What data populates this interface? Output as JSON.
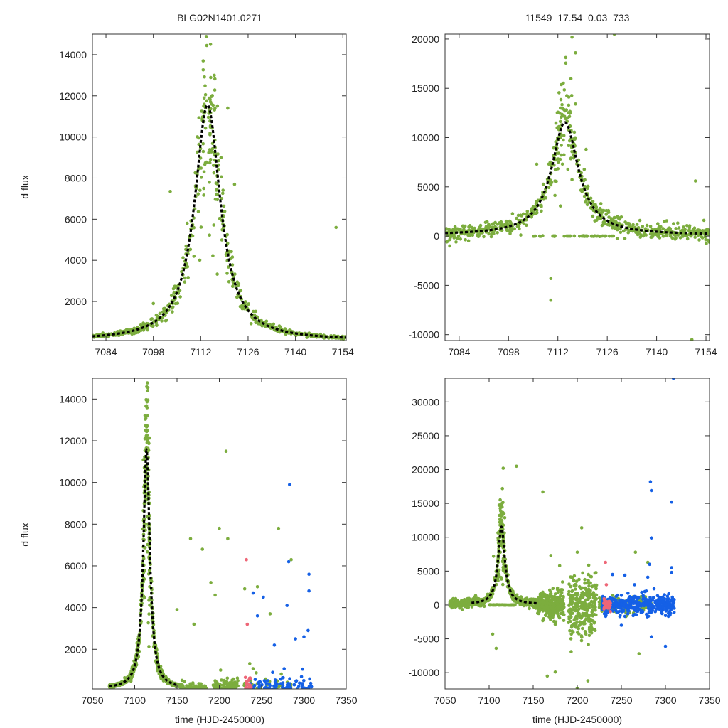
{
  "colors": {
    "green": "#7cad3e",
    "blue": "#1560e6",
    "pink": "#ee6677",
    "model": "#000000",
    "axis": "#333333"
  },
  "chart_data": [
    {
      "id": "tl",
      "type": "scatter",
      "title": "BLG02N1401.0271",
      "xlabel": "",
      "ylabel": "d flux",
      "xlim": [
        7080,
        7155
      ],
      "ylim": [
        100,
        15000
      ],
      "xticks": [
        7084,
        7098,
        7112,
        7126,
        7140,
        7154
      ],
      "yticks": [
        2000,
        4000,
        6000,
        8000,
        10000,
        12000,
        14000
      ],
      "model": {
        "t0": 7114,
        "peak": 11550,
        "tE": 4.6,
        "base": 100
      },
      "seed": 11,
      "series": [
        {
          "name": "green",
          "color": "#7cad3e",
          "segments": [
            [
              7080,
              7155,
              620,
              12,
              "model"
            ],
            [
              7111,
              7117,
              60,
              2500,
              "model"
            ]
          ],
          "outliers": [
            [
              7103,
              7350
            ],
            [
              7108,
              5800
            ],
            [
              7120,
              11400
            ],
            [
              7152,
              5600
            ],
            [
              7098,
              1900
            ],
            [
              7118,
              9000
            ],
            [
              7122,
              7700
            ],
            [
              7116,
              13000
            ],
            [
              7110,
              4200
            ]
          ]
        }
      ]
    },
    {
      "id": "tr",
      "title": "11549  17.54  0.03  733",
      "type": "scatter",
      "xlabel": "",
      "ylabel": "",
      "xlim": [
        7080,
        7155
      ],
      "ylim": [
        -10600,
        20500
      ],
      "xticks": [
        7084,
        7098,
        7112,
        7126,
        7140,
        7154
      ],
      "yticks": [
        -10000,
        -5000,
        0,
        5000,
        10000,
        15000,
        20000
      ],
      "model": {
        "t0": 7114,
        "peak": 11550,
        "tE": 4.6,
        "base": 100
      },
      "seed": 23,
      "series": [
        {
          "name": "green",
          "color": "#7cad3e",
          "segments": [
            [
              7080,
              7155,
              620,
              400,
              "model"
            ],
            [
              7111,
              7117,
              60,
              2500,
              "model"
            ],
            [
              7105,
              7128,
              45,
              60,
              "zero"
            ]
          ],
          "outliers": [
            [
              7106,
              7300
            ],
            [
              7110,
              -4300
            ],
            [
              7110,
              -6500
            ],
            [
              7116,
              20200
            ],
            [
              7117,
              18600
            ],
            [
              7128,
              20500
            ],
            [
              7150,
              -10500
            ],
            [
              7151,
              5600
            ],
            [
              7120,
              8800
            ]
          ]
        }
      ]
    },
    {
      "id": "bl",
      "type": "scatter",
      "xlabel": "time (HJD-2450000)",
      "ylabel": "d flux",
      "xlim": [
        7050,
        7350
      ],
      "ylim": [
        100,
        15000
      ],
      "xticks": [
        7050,
        7100,
        7150,
        7200,
        7250,
        7300,
        7350
      ],
      "yticks": [
        2000,
        4000,
        6000,
        8000,
        10000,
        12000,
        14000
      ],
      "model": {
        "t0": 7114,
        "peak": 11550,
        "tE": 4.6,
        "base": 100,
        "from": 7070,
        "to": 7150
      },
      "seed": 37,
      "series": [
        {
          "name": "green",
          "color": "#7cad3e",
          "segments": [
            [
              7070,
              7155,
              650,
              20,
              "model"
            ],
            [
              7110,
              7118,
              80,
              2500,
              "model"
            ],
            [
              7155,
              7185,
              280,
              150,
              "noise"
            ],
            [
              7192,
              7222,
              220,
              300,
              "noise"
            ],
            [
              7225,
              7285,
              120,
              400,
              "noise"
            ]
          ],
          "outliers": [
            [
              7208,
              11500
            ],
            [
              7166,
              7300
            ],
            [
              7200,
              7800
            ],
            [
              7210,
              7300
            ],
            [
              7180,
              6800
            ],
            [
              7270,
              7800
            ],
            [
              7285,
              6300
            ],
            [
              7190,
              5200
            ],
            [
              7230,
              4900
            ],
            [
              7245,
              5000
            ],
            [
              7195,
              4600
            ],
            [
              7260,
              3700
            ],
            [
              7150,
              3900
            ],
            [
              7170,
              3200
            ]
          ]
        },
        {
          "name": "blue",
          "color": "#1560e6",
          "segments": [
            [
              7228,
              7310,
              190,
              400,
              "noise"
            ]
          ],
          "outliers": [
            [
              7283,
              9900
            ],
            [
              7282,
              6200
            ],
            [
              7306,
              5600
            ],
            [
              7306,
              4800
            ],
            [
              7240,
              4700
            ],
            [
              7252,
              4500
            ],
            [
              7280,
              4100
            ],
            [
              7305,
              2900
            ],
            [
              7245,
              3600
            ],
            [
              7290,
              2500
            ],
            [
              7265,
              2200
            ],
            [
              7300,
              2600
            ]
          ]
        },
        {
          "name": "pink",
          "color": "#ee6677",
          "segments": [
            [
              7230,
              7238,
              30,
              300,
              "noise"
            ]
          ],
          "outliers": [
            [
              7232,
              6300
            ],
            [
              7233,
              3200
            ]
          ]
        }
      ]
    },
    {
      "id": "br",
      "type": "scatter",
      "xlabel": "time (HJD-2450000)",
      "ylabel": "",
      "xlim": [
        7050,
        7350
      ],
      "ylim": [
        -12400,
        33500
      ],
      "xticks": [
        7050,
        7100,
        7150,
        7200,
        7250,
        7300,
        7350
      ],
      "yticks": [
        -10000,
        -5000,
        0,
        5000,
        10000,
        15000,
        20000,
        25000,
        30000
      ],
      "model": {
        "t0": 7114,
        "peak": 11550,
        "tE": 4.6,
        "base": 100,
        "from": 7080,
        "to": 7155
      },
      "seed": 53,
      "series": [
        {
          "name": "green",
          "color": "#7cad3e",
          "segments": [
            [
              7055,
              7160,
              520,
              300,
              "model"
            ],
            [
              7110,
              7118,
              80,
              2500,
              "model"
            ],
            [
              7100,
              7130,
              60,
              60,
              "zero"
            ],
            [
              7155,
              7185,
              300,
              1000,
              "noise"
            ],
            [
              7190,
              7222,
              280,
              2400,
              "noise"
            ],
            [
              7225,
              7285,
              150,
              500,
              "noise"
            ]
          ],
          "outliers": [
            [
              7116,
              20200
            ],
            [
              7131,
              20500
            ],
            [
              7161,
              16700
            ],
            [
              7105,
              7200
            ],
            [
              7108,
              -6400
            ],
            [
              7104,
              -4300
            ],
            [
              7166,
              -10500
            ],
            [
              7175,
              -9900
            ],
            [
              7212,
              -11200
            ],
            [
              7200,
              -12300
            ],
            [
              7270,
              -7200
            ],
            [
              7205,
              11400
            ],
            [
              7170,
              7300
            ],
            [
              7200,
              7800
            ],
            [
              7266,
              7800
            ],
            [
              7280,
              6300
            ],
            [
              7180,
              5800
            ]
          ]
        },
        {
          "name": "blue",
          "color": "#1560e6",
          "segments": [
            [
              7228,
              7310,
              380,
              700,
              "noise"
            ]
          ],
          "outliers": [
            [
              7283,
              18200
            ],
            [
              7284,
              16900
            ],
            [
              7307,
              15200
            ],
            [
              7284,
              9900
            ],
            [
              7282,
              6000
            ],
            [
              7307,
              5500
            ],
            [
              7307,
              4800
            ],
            [
              7240,
              4500
            ],
            [
              7254,
              4400
            ],
            [
              7280,
              4100
            ],
            [
              7250,
              -3000
            ],
            [
              7300,
              -6100
            ],
            [
              7284,
              -4700
            ],
            [
              7309,
              33500
            ],
            [
              7265,
              3000
            ]
          ]
        },
        {
          "name": "pink",
          "color": "#ee6677",
          "segments": [
            [
              7230,
              7238,
              40,
              400,
              "noise"
            ]
          ],
          "outliers": [
            [
              7232,
              6300
            ],
            [
              7233,
              3000
            ]
          ]
        }
      ]
    }
  ]
}
